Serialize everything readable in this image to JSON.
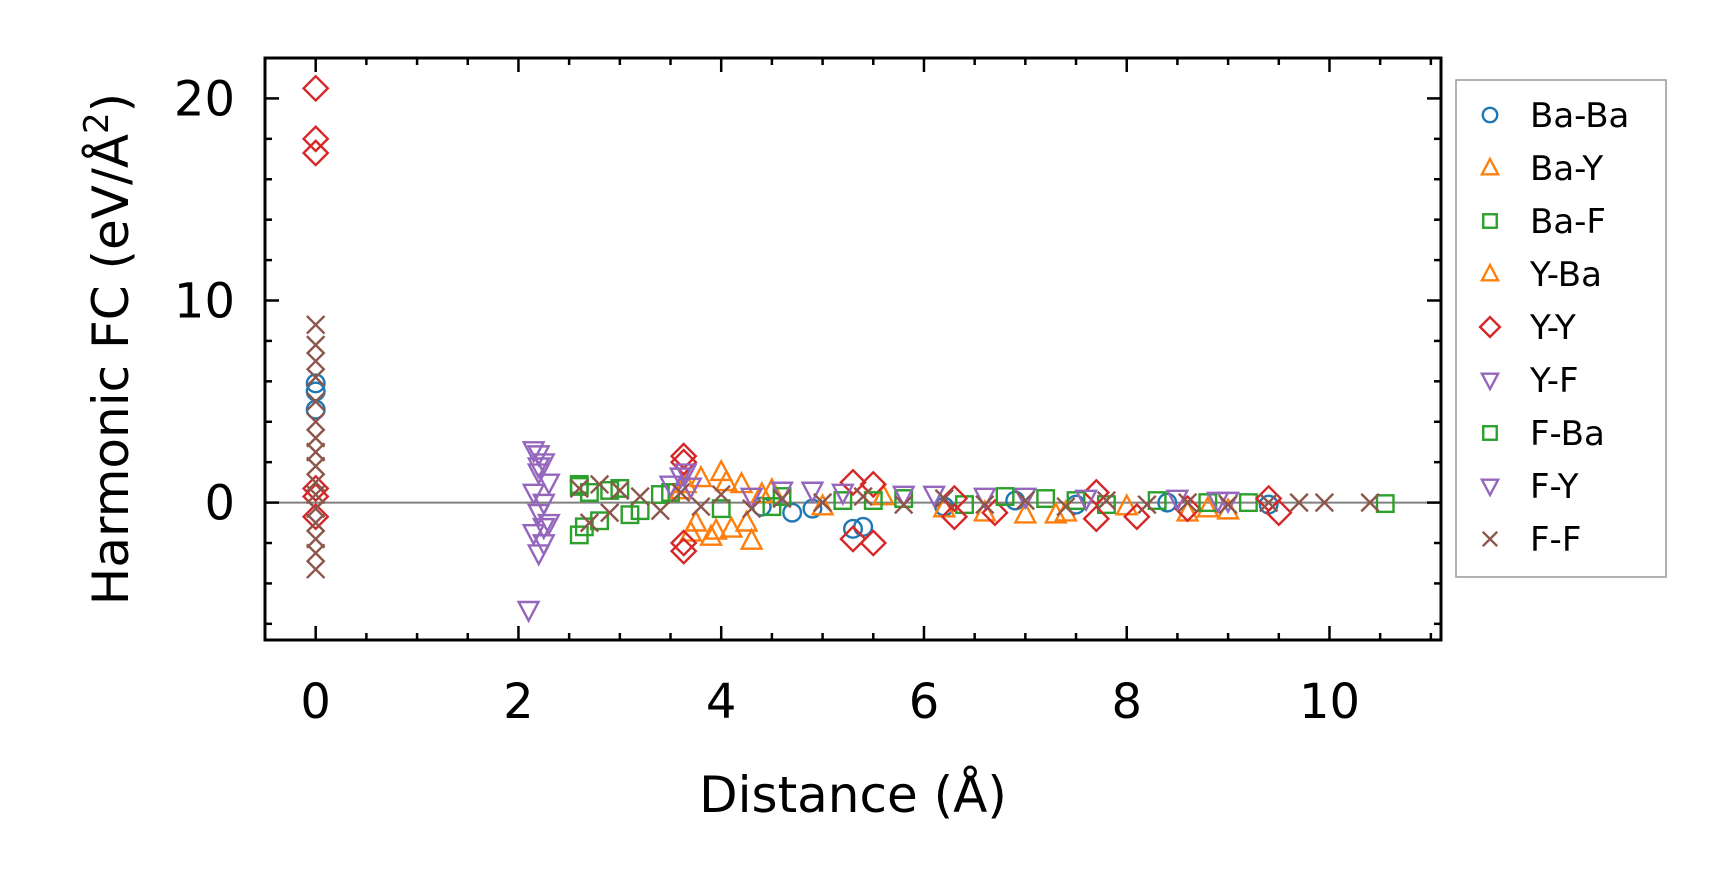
{
  "chart_data": {
    "type": "scatter",
    "title": "",
    "xlabel": "Distance (Å)",
    "ylabel_main": "Harmonic FC (eV/Å",
    "ylabel_sup": "2",
    "ylabel_end": ")",
    "xlim": [
      -0.5,
      11.1
    ],
    "ylim": [
      -6.8,
      22
    ],
    "x_ticks": [
      0,
      2,
      4,
      6,
      8,
      10
    ],
    "x_tick_labels": [
      "0",
      "2",
      "4",
      "6",
      "8",
      "10"
    ],
    "x_minor_step": 0.5,
    "y_ticks": [
      0,
      10,
      20
    ],
    "y_tick_labels": [
      "0",
      "10",
      "20"
    ],
    "y_minor_step": 2,
    "zero_line": true,
    "legend_position": "outside-right",
    "series": [
      {
        "name": "Ba-Ba",
        "marker": "circle",
        "color": "#1f77b4",
        "points": [
          [
            0,
            5.9
          ],
          [
            0,
            5.5
          ],
          [
            0,
            4.6
          ],
          [
            4.4,
            -0.2
          ],
          [
            4.7,
            -0.5
          ],
          [
            4.9,
            -0.3
          ],
          [
            5.3,
            -1.3
          ],
          [
            5.4,
            -1.2
          ],
          [
            6.2,
            -0.2
          ],
          [
            6.9,
            0.1
          ],
          [
            7.5,
            -0.1
          ],
          [
            8.4,
            0.0
          ],
          [
            9.4,
            -0.1
          ]
        ]
      },
      {
        "name": "Ba-Y",
        "marker": "triangle-up",
        "color": "#ff7f0e",
        "points": [
          [
            3.6,
            0.6
          ],
          [
            3.7,
            -1.5
          ],
          [
            3.8,
            1.2
          ],
          [
            3.9,
            -1.7
          ],
          [
            4.0,
            1.5
          ],
          [
            4.1,
            -1.3
          ],
          [
            4.2,
            0.9
          ],
          [
            4.3,
            -1.9
          ],
          [
            4.5,
            0.6
          ],
          [
            5.0,
            -0.2
          ],
          [
            5.6,
            0.3
          ],
          [
            6.2,
            -0.3
          ],
          [
            7.0,
            -0.6
          ],
          [
            7.4,
            -0.5
          ],
          [
            8.0,
            -0.2
          ],
          [
            8.6,
            -0.5
          ],
          [
            9.0,
            -0.4
          ]
        ]
      },
      {
        "name": "Ba-F",
        "marker": "square",
        "color": "#2ca02c",
        "points": [
          [
            2.6,
            0.8
          ],
          [
            2.6,
            -1.6
          ],
          [
            2.7,
            0.5
          ],
          [
            2.8,
            -0.9
          ],
          [
            3.0,
            0.7
          ],
          [
            3.2,
            -0.4
          ],
          [
            3.5,
            0.5
          ],
          [
            4.0,
            -0.3
          ],
          [
            4.6,
            0.3
          ],
          [
            5.2,
            0.1
          ],
          [
            5.8,
            0.2
          ],
          [
            6.4,
            -0.1
          ],
          [
            7.2,
            0.2
          ],
          [
            7.8,
            -0.1
          ],
          [
            8.3,
            0.1
          ],
          [
            9.2,
            0.0
          ],
          [
            10.55,
            -0.05
          ]
        ]
      },
      {
        "name": "Y-Ba",
        "marker": "triangle-up",
        "color": "#ff7f0e",
        "points": [
          [
            3.65,
            0.9
          ],
          [
            3.75,
            -1.0
          ],
          [
            3.95,
            -1.4
          ],
          [
            4.05,
            1.0
          ],
          [
            4.25,
            -1.0
          ],
          [
            4.4,
            0.4
          ],
          [
            6.6,
            -0.5
          ],
          [
            7.3,
            -0.6
          ],
          [
            8.8,
            -0.3
          ]
        ]
      },
      {
        "name": "Y-Y",
        "marker": "diamond",
        "color": "#d62728",
        "points": [
          [
            0,
            20.5
          ],
          [
            0,
            18.0
          ],
          [
            0,
            17.3
          ],
          [
            0,
            0.7
          ],
          [
            0,
            0.3
          ],
          [
            0,
            -0.7
          ],
          [
            3.63,
            2.3
          ],
          [
            3.63,
            2.0
          ],
          [
            3.63,
            -2.0
          ],
          [
            3.63,
            -2.4
          ],
          [
            5.3,
            1.0
          ],
          [
            5.3,
            -1.8
          ],
          [
            5.5,
            0.9
          ],
          [
            5.5,
            -2.0
          ],
          [
            6.3,
            0.2
          ],
          [
            6.3,
            -0.7
          ],
          [
            6.7,
            -0.5
          ],
          [
            7.7,
            0.5
          ],
          [
            7.7,
            -0.8
          ],
          [
            8.1,
            -0.7
          ],
          [
            8.6,
            -0.3
          ],
          [
            9.4,
            0.2
          ],
          [
            9.5,
            -0.5
          ]
        ]
      },
      {
        "name": "Y-F",
        "marker": "triangle-down",
        "color": "#9467bd",
        "points": [
          [
            2.15,
            2.6
          ],
          [
            2.2,
            2.4
          ],
          [
            2.25,
            2.0
          ],
          [
            2.2,
            1.5
          ],
          [
            2.3,
            1.0
          ],
          [
            2.15,
            0.5
          ],
          [
            2.25,
            0.0
          ],
          [
            2.2,
            -0.5
          ],
          [
            2.3,
            -1.0
          ],
          [
            2.15,
            -1.5
          ],
          [
            2.25,
            -2.0
          ],
          [
            2.2,
            -2.5
          ],
          [
            2.1,
            -5.3
          ],
          [
            3.6,
            1.3
          ],
          [
            3.7,
            0.8
          ],
          [
            4.6,
            0.6
          ],
          [
            5.2,
            0.5
          ],
          [
            6.1,
            0.4
          ],
          [
            7.0,
            0.3
          ],
          [
            8.5,
            0.2
          ],
          [
            9.0,
            0.1
          ]
        ]
      },
      {
        "name": "F-Ba",
        "marker": "square",
        "color": "#2ca02c",
        "points": [
          [
            2.6,
            0.9
          ],
          [
            2.65,
            -1.2
          ],
          [
            2.9,
            0.6
          ],
          [
            3.1,
            -0.6
          ],
          [
            3.4,
            0.4
          ],
          [
            4.5,
            -0.2
          ],
          [
            5.5,
            0.1
          ],
          [
            6.8,
            0.3
          ],
          [
            7.5,
            0.1
          ],
          [
            8.8,
            0.0
          ]
        ]
      },
      {
        "name": "F-Y",
        "marker": "triangle-down",
        "color": "#9467bd",
        "points": [
          [
            2.2,
            1.8
          ],
          [
            2.25,
            -1.2
          ],
          [
            3.5,
            0.9
          ],
          [
            3.65,
            1.5
          ],
          [
            4.3,
            0.3
          ],
          [
            4.9,
            0.6
          ],
          [
            5.8,
            0.4
          ],
          [
            6.6,
            0.3
          ],
          [
            7.6,
            0.2
          ],
          [
            8.9,
            0.1
          ]
        ]
      },
      {
        "name": "F-F",
        "marker": "cross",
        "color": "#8c564b",
        "points": [
          [
            0,
            8.8
          ],
          [
            0,
            7.8
          ],
          [
            0,
            7.0
          ],
          [
            0,
            6.2
          ],
          [
            0,
            5.0
          ],
          [
            0,
            4.0
          ],
          [
            0,
            3.2
          ],
          [
            0,
            2.5
          ],
          [
            0,
            1.8
          ],
          [
            0,
            1.0
          ],
          [
            0,
            0.4
          ],
          [
            0,
            -0.3
          ],
          [
            0,
            -1.0
          ],
          [
            0,
            -1.8
          ],
          [
            0,
            -2.5
          ],
          [
            0,
            -3.3
          ],
          [
            2.6,
            0.7
          ],
          [
            2.7,
            -1.0
          ],
          [
            2.8,
            0.9
          ],
          [
            2.9,
            -0.5
          ],
          [
            3.0,
            0.6
          ],
          [
            3.2,
            0.3
          ],
          [
            3.4,
            -0.4
          ],
          [
            3.6,
            0.5
          ],
          [
            3.8,
            -0.2
          ],
          [
            4.0,
            0.4
          ],
          [
            4.3,
            -0.3
          ],
          [
            4.6,
            0.2
          ],
          [
            5.0,
            0.0
          ],
          [
            5.4,
            0.3
          ],
          [
            5.8,
            -0.1
          ],
          [
            6.2,
            0.2
          ],
          [
            6.6,
            -0.1
          ],
          [
            7.0,
            0.1
          ],
          [
            7.4,
            -0.2
          ],
          [
            7.8,
            0.1
          ],
          [
            8.2,
            -0.1
          ],
          [
            8.6,
            0.0
          ],
          [
            9.0,
            -0.1
          ],
          [
            9.4,
            0.0
          ],
          [
            9.7,
            0.0
          ],
          [
            9.95,
            0.0
          ],
          [
            10.4,
            0.0
          ]
        ]
      }
    ]
  }
}
